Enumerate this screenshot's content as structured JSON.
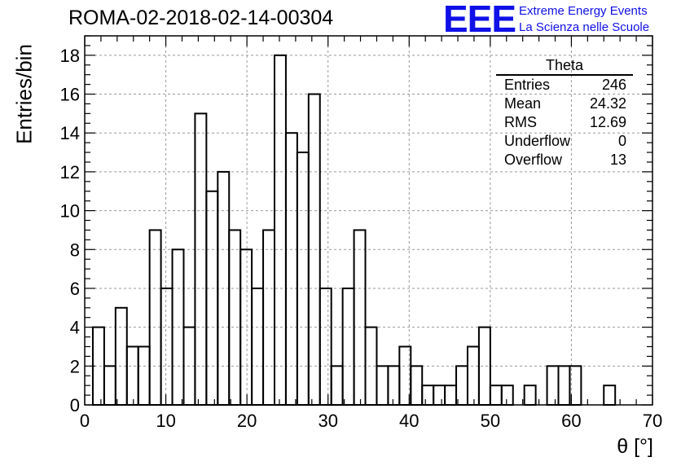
{
  "title": "ROMA-02-2018-02-14-00304",
  "logo": {
    "mark": "EEE",
    "line1": "Extreme Energy Events",
    "line2": "La Scienza nelle Scuole",
    "color": "#1010e8"
  },
  "stats": {
    "name": "Theta",
    "rows": [
      {
        "label": "Entries",
        "value": "246"
      },
      {
        "label": "Mean",
        "value": "24.32"
      },
      {
        "label": "RMS",
        "value": "12.69"
      },
      {
        "label": "Underflow",
        "value": "0"
      },
      {
        "label": "Overflow",
        "value": "13"
      }
    ]
  },
  "chart_data": {
    "type": "bar",
    "histogram": true,
    "title": "ROMA-02-2018-02-14-00304",
    "xlabel": "θ [°]",
    "ylabel": "Entries/bin",
    "xlim": [
      0,
      70
    ],
    "ylim": [
      0,
      19
    ],
    "grid": true,
    "bin_width": 1.4,
    "bin_start": 1.0,
    "values": [
      4,
      2,
      5,
      3,
      3,
      9,
      6,
      8,
      4,
      15,
      11,
      12,
      9,
      8,
      6,
      9,
      18,
      14,
      13,
      16,
      6,
      2,
      6,
      9,
      4,
      2,
      2,
      3,
      2,
      1,
      1,
      1,
      2,
      3,
      4,
      1,
      1,
      0,
      1,
      0,
      2,
      2,
      2,
      0,
      0,
      1,
      0
    ],
    "x_ticks": [
      "0",
      "10",
      "20",
      "30",
      "40",
      "50",
      "60",
      "70"
    ],
    "y_ticks": [
      "0",
      "2",
      "4",
      "6",
      "8",
      "10",
      "12",
      "14",
      "16",
      "18"
    ]
  }
}
